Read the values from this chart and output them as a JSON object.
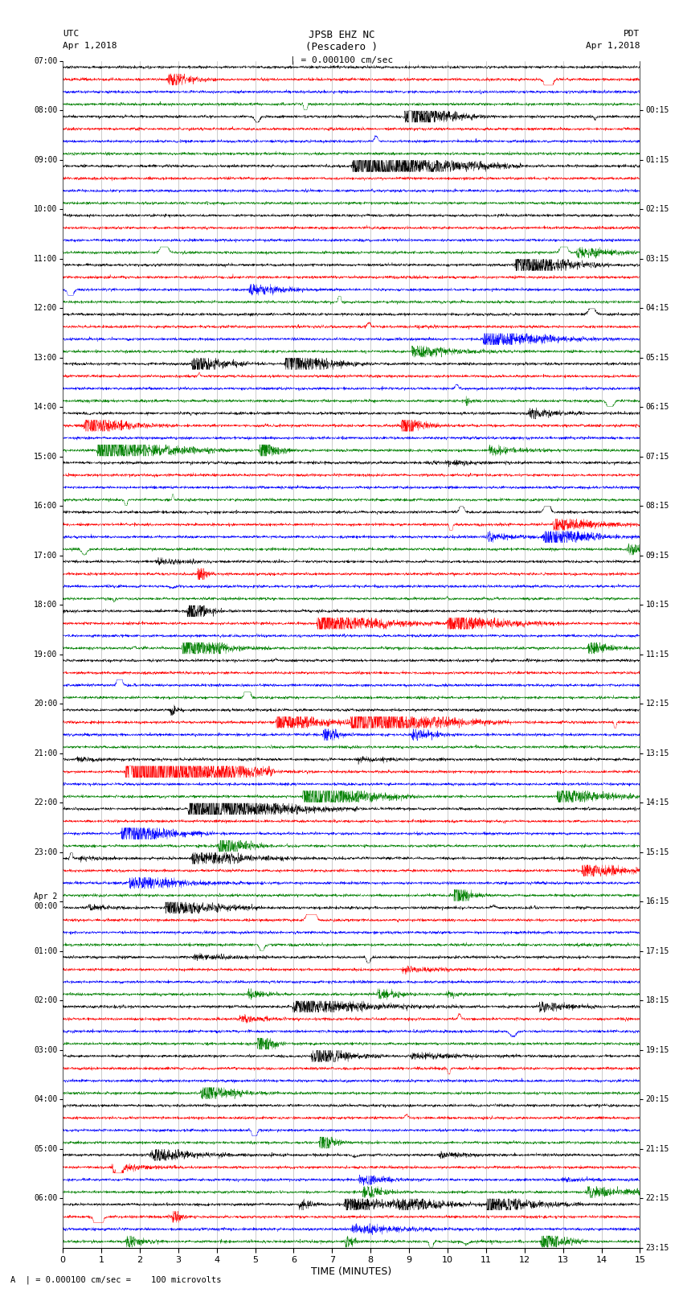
{
  "title_line1": "JPSB EHZ NC",
  "title_line2": "(Pescadero )",
  "scale_label": "| = 0.000100 cm/sec",
  "footer_label": "A  | = 0.000100 cm/sec =    100 microvolts",
  "xlabel": "TIME (MINUTES)",
  "utc_label": "UTC",
  "utc_date": "Apr 1,2018",
  "pdt_label": "PDT",
  "pdt_date": "Apr 1,2018",
  "left_times": [
    "07:00",
    "08:00",
    "09:00",
    "10:00",
    "11:00",
    "12:00",
    "13:00",
    "14:00",
    "15:00",
    "16:00",
    "17:00",
    "18:00",
    "19:00",
    "20:00",
    "21:00",
    "22:00",
    "23:00",
    "Apr 2\n00:00",
    "01:00",
    "02:00",
    "03:00",
    "04:00",
    "05:00",
    "06:00"
  ],
  "right_times": [
    "00:15",
    "01:15",
    "02:15",
    "03:15",
    "04:15",
    "05:15",
    "06:15",
    "07:15",
    "08:15",
    "09:15",
    "10:15",
    "11:15",
    "12:15",
    "13:15",
    "14:15",
    "15:15",
    "16:15",
    "17:15",
    "18:15",
    "19:15",
    "20:15",
    "21:15",
    "22:15",
    "23:15"
  ],
  "colors": [
    "black",
    "red",
    "blue",
    "green"
  ],
  "bg_color": "white",
  "num_traces_per_hour": 4,
  "total_hours": 24,
  "minutes": 15,
  "samples": 3000,
  "base_noise": 0.012,
  "seed": 42
}
